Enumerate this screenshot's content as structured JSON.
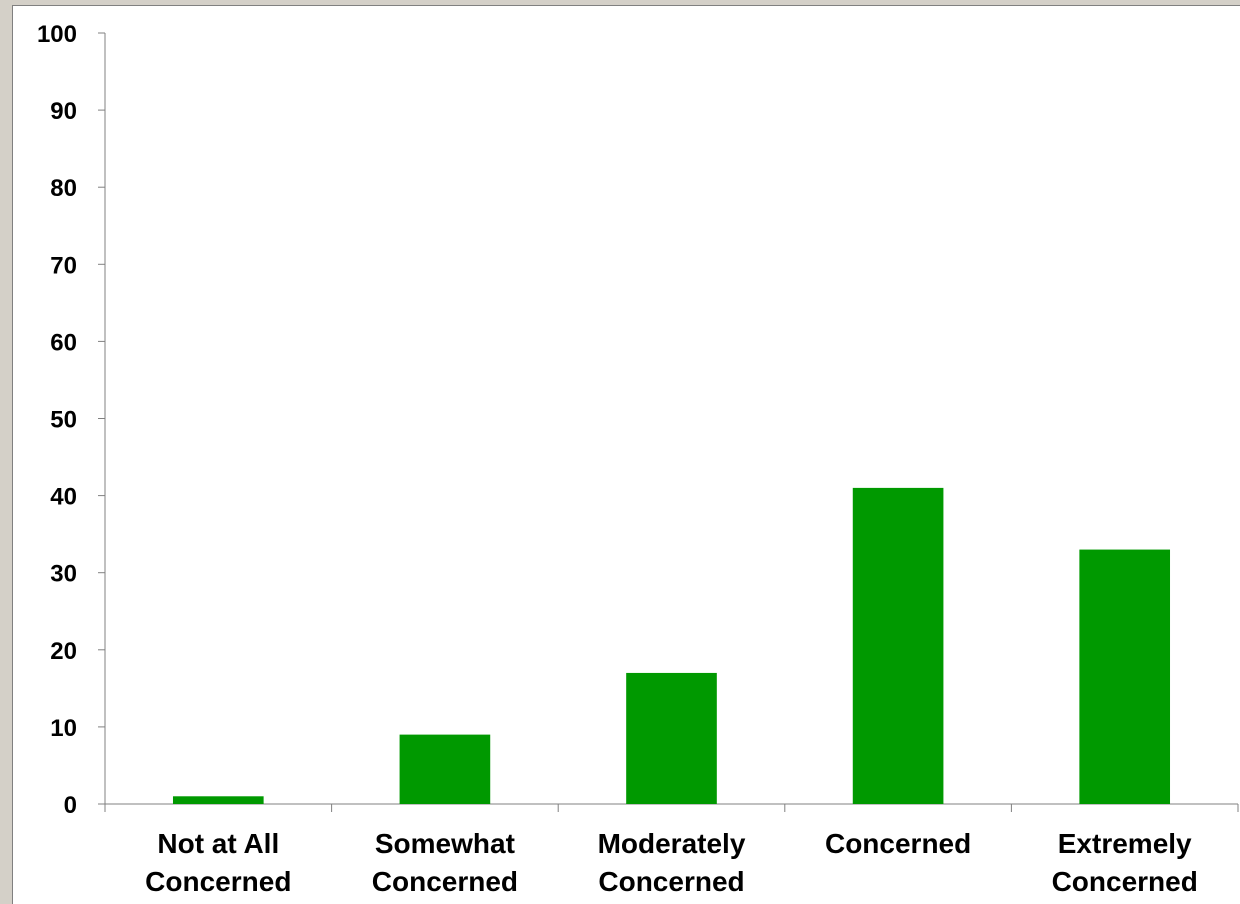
{
  "chart_data": {
    "type": "bar",
    "categories": [
      [
        "Not at All",
        "Concerned"
      ],
      [
        "Somewhat",
        "Concerned"
      ],
      [
        "Moderately",
        "Concerned"
      ],
      [
        "Concerned"
      ],
      [
        "Extremely",
        "Concerned"
      ]
    ],
    "values": [
      1,
      9,
      17,
      41,
      33
    ],
    "ylim": [
      0,
      100
    ],
    "yticks": [
      0,
      10,
      20,
      30,
      40,
      50,
      60,
      70,
      80,
      90,
      100
    ],
    "bar_color": "#009900",
    "axis_color": "#808080",
    "grid": false,
    "legend": "none"
  }
}
